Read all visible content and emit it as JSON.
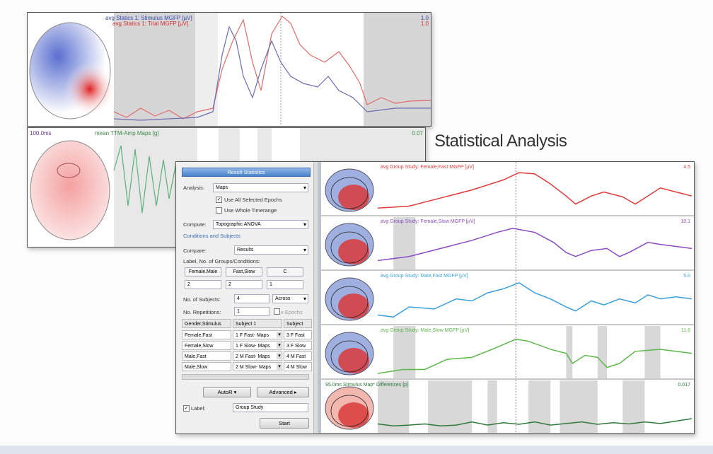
{
  "heading": "Statistical Analysis",
  "top_panel": {
    "series_1": "avg Statics 1: Stimulus MGFP [µV]",
    "series_2": "avg Statics 1: Trial MGFP [µV]",
    "value_1": "1.0",
    "value_2": "1.0"
  },
  "middle_panel": {
    "time": "100.0ms",
    "series": "mean TTM-Amp Maps [g]",
    "value": "0.07"
  },
  "dialog": {
    "title": "Result Statistics",
    "analysis_label": "Analysis:",
    "analysis_value": "Maps",
    "use_all_epochs": "Use All Selected Epochs",
    "use_whole_timerange": "Use Whole Timerange",
    "compute_label": "Compute:",
    "compute_value": "Topographic ANOVA",
    "section": "Conditions and Subjects",
    "compare_label": "Compare:",
    "compare_value": "Results",
    "groups_label": "Label, No. of Groups/Conditions:",
    "group_labels": [
      "Female,Male",
      "Fast,Slow",
      "C"
    ],
    "group_counts": [
      "2",
      "2",
      "1"
    ],
    "subjects_label": "No. of Subjects:",
    "subjects_value": "4",
    "subjects_mode": "Across",
    "repetitions_label": "No. Repetitions:",
    "repetitions_value": "1",
    "epochs": "x Epochs",
    "table": {
      "header": [
        "Gender,Stimulus",
        "Subject 1",
        "Subject"
      ],
      "rows": [
        [
          "Female,Fast",
          "1 F Fast- Maps",
          "3 F Fast"
        ],
        [
          "Female,Slow",
          "1 F Slow- Maps",
          "3 F Slow"
        ],
        [
          "Male,Fast",
          "2 M Fast- Maps",
          "4 M Fast"
        ],
        [
          "Male,Slow",
          "2 M Slow- Maps",
          "4 M Slow"
        ]
      ]
    },
    "buttons": [
      "AutoR",
      "Advanced"
    ],
    "label_check": "Label:",
    "label_value": "Group Study",
    "start": "Start"
  },
  "tracks": [
    {
      "label": "avg Group Study: Female,Fast MGFP [µV]",
      "value": "4.5",
      "color": "#e23a3a"
    },
    {
      "label": "avg Group Study: Female,Slow MGFP [µV]",
      "value": "10.1",
      "color": "#8a4cc0"
    },
    {
      "label": "avg Group Study: Male,Fast MGFP [µV]",
      "value": "5.0",
      "color": "#3aa0dc"
    },
    {
      "label": "avg Group Study: Male,Slow MGFP [µV]",
      "value": "11.6",
      "color": "#5cb84a"
    },
    {
      "label": "95.0ms  Stimulus Map* Differences [p]",
      "value": "0.017",
      "color": "#2f7a3a"
    }
  ]
}
